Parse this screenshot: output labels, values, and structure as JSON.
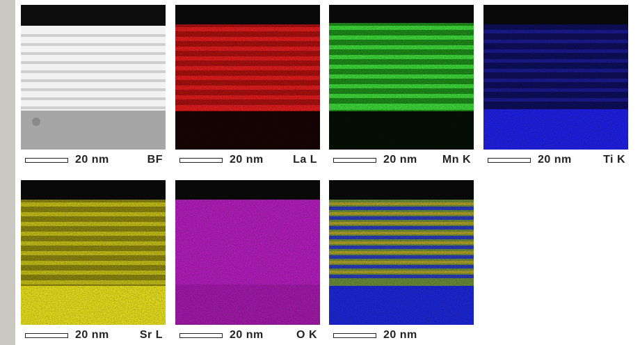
{
  "panels": [
    {
      "id": "bf",
      "element": "BF",
      "scale": "20 nm",
      "color": "#e6e6e6"
    },
    {
      "id": "la",
      "element": "La L",
      "scale": "20 nm",
      "color": "#d01818"
    },
    {
      "id": "mn",
      "element": "Mn K",
      "scale": "20 nm",
      "color": "#2ec82a"
    },
    {
      "id": "ti",
      "element": "Ti K",
      "scale": "20 nm",
      "color": "#2020e0"
    },
    {
      "id": "sr",
      "element": "Sr L",
      "scale": "20 nm",
      "color": "#e2dc1c"
    },
    {
      "id": "o",
      "element": "O K",
      "scale": "20 nm",
      "color": "#c020c8"
    },
    {
      "id": "mix",
      "element": "",
      "scale": "20 nm",
      "color": "#6a9a3a"
    }
  ]
}
